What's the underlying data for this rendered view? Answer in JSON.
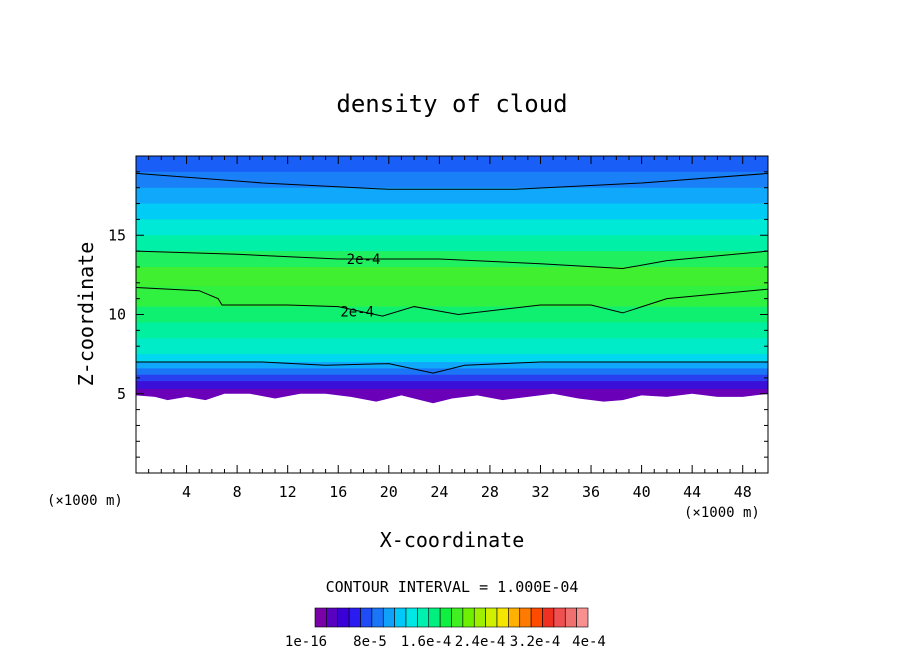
{
  "chart_data": {
    "type": "contour",
    "title": "density of cloud",
    "xlabel": "X-coordinate",
    "ylabel": "Z-coordinate",
    "x_unit_left": "(×1000 m)",
    "x_unit_right": "(×1000 m)",
    "xlim": [
      0,
      50
    ],
    "ylim": [
      0,
      20
    ],
    "x_ticks": [
      4,
      8,
      12,
      16,
      20,
      24,
      28,
      32,
      36,
      40,
      44,
      48
    ],
    "x_tick_labels": [
      "4",
      "8",
      "12",
      "16",
      "20",
      "24",
      "28",
      "32",
      "36",
      "40",
      "44",
      "48"
    ],
    "y_ticks": [
      5,
      10,
      15
    ],
    "y_tick_labels": [
      "5",
      "10",
      "15"
    ],
    "contour_interval_text": "CONTOUR INTERVAL = 1.000E-04",
    "contour_labels": [
      "2e-4",
      "2e-4"
    ],
    "colorbar_labels": [
      "1e-16",
      "8e-5",
      "1.6e-4",
      "2.4e-4",
      "3.2e-4",
      "4e-4"
    ],
    "colorbar_colors": [
      "#7a00a8",
      "#5a00c0",
      "#3a00d8",
      "#2a1cf0",
      "#1f4cf5",
      "#1a76f7",
      "#10a2fa",
      "#00c8f8",
      "#00e8e6",
      "#00f0b0",
      "#00f080",
      "#10f040",
      "#40f020",
      "#6ef000",
      "#9ef000",
      "#d0f000",
      "#f5e600",
      "#ffb000",
      "#ff7a00",
      "#ff4a00",
      "#f03020",
      "#f05050",
      "#f07070",
      "#f89090"
    ],
    "field_bands": [
      {
        "z": 20.0,
        "color": "#1a5ef8"
      },
      {
        "z": 19.0,
        "color": "#1a80f8"
      },
      {
        "z": 18.0,
        "color": "#10a8fa"
      },
      {
        "z": 17.0,
        "color": "#00ccf6"
      },
      {
        "z": 16.0,
        "color": "#00e8d6"
      },
      {
        "z": 15.0,
        "color": "#00f0a8"
      },
      {
        "z": 14.0,
        "color": "#20f060"
      },
      {
        "z": 13.0,
        "color": "#40f030"
      },
      {
        "z": 11.8,
        "color": "#30f040"
      },
      {
        "z": 10.5,
        "color": "#10f070"
      },
      {
        "z": 9.5,
        "color": "#00f0a0"
      },
      {
        "z": 8.5,
        "color": "#00ecc8"
      },
      {
        "z": 7.5,
        "color": "#00d8f0"
      },
      {
        "z": 7.0,
        "color": "#10a8fa"
      },
      {
        "z": 6.6,
        "color": "#1a76f7"
      },
      {
        "z": 6.2,
        "color": "#2a40f0"
      },
      {
        "z": 5.8,
        "color": "#3a10d8"
      },
      {
        "z": 5.3,
        "color": "#6a00b8"
      }
    ],
    "contour_lines": [
      {
        "label": "",
        "points": [
          [
            0,
            18.9
          ],
          [
            10,
            18.3
          ],
          [
            20,
            17.9
          ],
          [
            30,
            17.9
          ],
          [
            40,
            18.3
          ],
          [
            50,
            18.9
          ]
        ]
      },
      {
        "label": "2e-4",
        "points": [
          [
            0,
            14.0
          ],
          [
            8,
            13.8
          ],
          [
            16,
            13.5
          ],
          [
            24,
            13.5
          ],
          [
            32,
            13.2
          ],
          [
            38.5,
            12.9
          ],
          [
            42,
            13.4
          ],
          [
            50,
            14.0
          ]
        ]
      },
      {
        "label": "2e-4",
        "points": [
          [
            0,
            11.7
          ],
          [
            5,
            11.5
          ],
          [
            6.5,
            11.0
          ],
          [
            6.8,
            10.6
          ],
          [
            12,
            10.6
          ],
          [
            16,
            10.5
          ],
          [
            19.5,
            9.9
          ],
          [
            22,
            10.5
          ],
          [
            25.5,
            10.0
          ],
          [
            32,
            10.6
          ],
          [
            36,
            10.6
          ],
          [
            38.5,
            10.1
          ],
          [
            42,
            11.0
          ],
          [
            50,
            11.6
          ]
        ]
      },
      {
        "label": "",
        "points": [
          [
            0,
            7.0
          ],
          [
            5,
            7.0
          ],
          [
            10,
            7.0
          ],
          [
            15,
            6.8
          ],
          [
            20,
            6.9
          ],
          [
            23.5,
            6.3
          ],
          [
            26,
            6.8
          ],
          [
            32,
            7.0
          ],
          [
            38,
            7.0
          ],
          [
            44,
            7.0
          ],
          [
            50,
            7.0
          ]
        ]
      }
    ],
    "cloud_base_profile": [
      [
        0,
        4.9
      ],
      [
        1.5,
        4.8
      ],
      [
        2.5,
        4.6
      ],
      [
        4,
        4.8
      ],
      [
        5.5,
        4.6
      ],
      [
        7,
        5.0
      ],
      [
        9,
        5.0
      ],
      [
        11,
        4.7
      ],
      [
        13,
        5.0
      ],
      [
        15,
        5.0
      ],
      [
        17,
        4.8
      ],
      [
        19,
        4.5
      ],
      [
        21,
        4.9
      ],
      [
        23.5,
        4.4
      ],
      [
        25,
        4.7
      ],
      [
        27,
        4.9
      ],
      [
        29,
        4.6
      ],
      [
        31,
        4.8
      ],
      [
        33,
        5.0
      ],
      [
        35,
        4.7
      ],
      [
        37,
        4.5
      ],
      [
        38.5,
        4.6
      ],
      [
        40,
        4.9
      ],
      [
        42,
        4.8
      ],
      [
        44,
        5.0
      ],
      [
        46,
        4.8
      ],
      [
        48,
        4.8
      ],
      [
        50,
        5.0
      ]
    ]
  }
}
